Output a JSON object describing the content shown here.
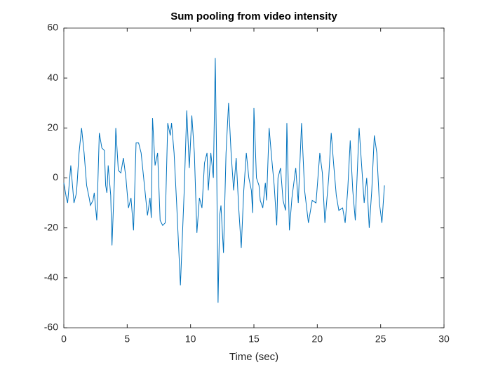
{
  "chart_data": {
    "type": "line",
    "title": "Sum pooling from video intensity",
    "xlabel": "Time (sec)",
    "x": [
      0,
      0.2,
      0.3,
      0.55,
      0.8,
      1.0,
      1.2,
      1.4,
      1.6,
      1.8,
      2.0,
      2.1,
      2.3,
      2.4,
      2.6,
      2.8,
      3.0,
      3.2,
      3.3,
      3.4,
      3.5,
      3.7,
      3.8,
      4.0,
      4.1,
      4.3,
      4.5,
      4.7,
      4.9,
      5.1,
      5.3,
      5.5,
      5.7,
      5.9,
      6.1,
      6.3,
      6.5,
      6.6,
      6.8,
      6.9,
      7.0,
      7.2,
      7.4,
      7.6,
      7.8,
      8.0,
      8.2,
      8.4,
      8.5,
      8.7,
      8.9,
      9.2,
      9.5,
      9.7,
      9.9,
      10.1,
      10.3,
      10.5,
      10.7,
      10.9,
      11.1,
      11.3,
      11.4,
      11.6,
      11.8,
      11.95,
      12.05,
      12.17,
      12.3,
      12.4,
      12.6,
      12.8,
      13.0,
      13.2,
      13.4,
      13.6,
      13.8,
      14.0,
      14.2,
      14.4,
      14.6,
      14.8,
      14.9,
      15.0,
      15.2,
      15.4,
      15.5,
      15.7,
      15.9,
      16.0,
      16.2,
      16.4,
      16.6,
      16.8,
      16.9,
      17.1,
      17.3,
      17.5,
      17.6,
      17.8,
      18.0,
      18.3,
      18.5,
      18.76,
      19.0,
      19.3,
      19.6,
      19.9,
      20.2,
      20.4,
      20.6,
      20.9,
      21.1,
      21.3,
      21.5,
      21.7,
      22.0,
      22.2,
      22.4,
      22.6,
      22.8,
      23.0,
      23.3,
      23.5,
      23.7,
      23.9,
      24.1,
      24.3,
      24.5,
      24.7,
      24.9,
      25.1,
      25.3
    ],
    "series": [
      {
        "name": "Sum pooling",
        "color": "#0072bd",
        "values": [
          -2,
          -8,
          -10,
          5,
          -10,
          -6,
          10,
          20,
          10,
          -3,
          -8,
          -11,
          -9,
          -6,
          -17,
          18,
          12,
          11,
          -3,
          -6,
          5,
          -7,
          -27,
          0,
          20,
          3,
          2,
          8,
          0,
          -12,
          -8,
          -21,
          14,
          14,
          10,
          0,
          -10,
          -15,
          -8,
          -16,
          24,
          5,
          10,
          -17,
          -19,
          -18,
          22,
          17,
          22,
          10,
          -10,
          -43,
          -5,
          27,
          4,
          25,
          10,
          -22,
          -8,
          -12,
          6,
          10,
          -5,
          10,
          0,
          48,
          10,
          -50,
          -15,
          -11,
          -30,
          10,
          30,
          10,
          -5,
          8,
          -12,
          -28,
          -5,
          10,
          0,
          -5,
          -14,
          28,
          0,
          -3,
          -9,
          -12,
          -2,
          -9,
          20,
          8,
          -3,
          -19,
          0,
          4,
          -9,
          -13,
          22,
          -21,
          -8,
          4,
          -10,
          22,
          -5,
          -18,
          -9,
          -10,
          10,
          2,
          -18,
          0,
          18,
          5,
          -7,
          -13,
          -12,
          -18,
          -5,
          15,
          -5,
          -17,
          20,
          5,
          -10,
          0,
          -20,
          -5,
          17,
          10,
          -10,
          -18,
          -3
        ]
      }
    ],
    "xlim": [
      0,
      30
    ],
    "ylim": [
      -60,
      60
    ],
    "xticks": [
      0,
      5,
      10,
      15,
      20,
      25,
      30
    ],
    "yticks": [
      -60,
      -40,
      -20,
      0,
      20,
      40,
      60
    ]
  }
}
